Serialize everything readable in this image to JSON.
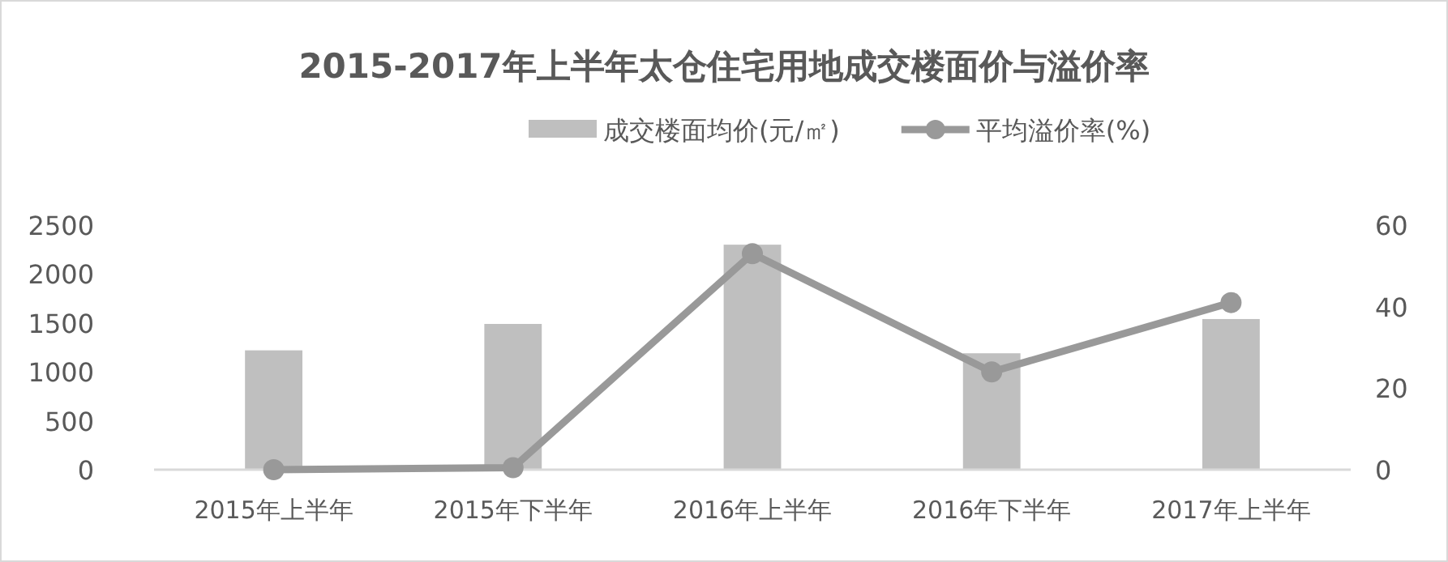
{
  "chart_data": {
    "type": "bar",
    "title": "2015-2017年上半年太仓住宅用地成交楼面价与溢价率",
    "categories": [
      "2015年上半年",
      "2015年下半年",
      "2016年上半年",
      "2016年下半年",
      "2017年上半年"
    ],
    "series": [
      {
        "name": "成交楼面均价(元/㎡)",
        "color": "#bfbfbf",
        "values": [
          1220,
          1490,
          2300,
          1190,
          1540
        ]
      },
      {
        "name": "平均溢价率(%)",
        "type": "line",
        "axis": "y2",
        "color": "#999999",
        "marker": "circle",
        "line_style": "solid",
        "values": [
          0,
          0.5,
          53,
          24,
          41
        ]
      }
    ],
    "ylim": [
      0,
      2500
    ],
    "yticks": [
      0,
      500,
      1000,
      1500,
      2000,
      2500
    ],
    "y2lim": [
      0,
      60
    ],
    "y2ticks": [
      0,
      20,
      40,
      60
    ],
    "grid": false,
    "legend": "top"
  }
}
